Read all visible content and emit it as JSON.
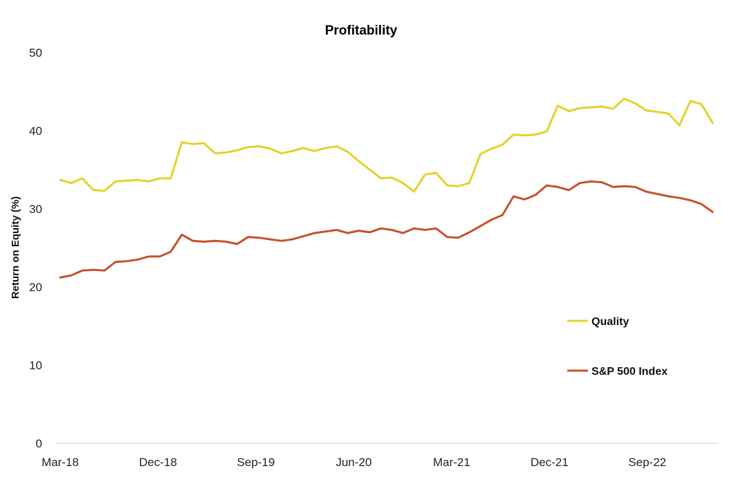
{
  "chart_data": {
    "type": "line",
    "title": "Profitability",
    "xlabel": "",
    "ylabel": "Return on Equity (%)",
    "ylim": [
      0,
      50
    ],
    "yticks": [
      0,
      10,
      20,
      30,
      40,
      50
    ],
    "x_ticks": [
      "Mar-18",
      "Dec-18",
      "Sep-19",
      "Jun-20",
      "Mar-21",
      "Dec-21",
      "Sep-22"
    ],
    "x_start": "Mar-18",
    "x_end": "Mar-23",
    "legend_position": "right",
    "series": [
      {
        "name": "Quality",
        "color": "#e3d22b",
        "values": [
          33.7,
          33.3,
          33.9,
          32.4,
          32.3,
          33.5,
          33.6,
          33.7,
          33.5,
          33.9,
          33.9,
          38.5,
          38.3,
          38.4,
          37.1,
          37.2,
          37.5,
          37.9,
          38.0,
          37.7,
          37.1,
          37.4,
          37.8,
          37.4,
          37.8,
          38.0,
          37.3,
          36.1,
          35.0,
          33.9,
          34.0,
          33.3,
          32.2,
          34.4,
          34.6,
          33.0,
          32.9,
          33.3,
          37.0,
          37.7,
          38.2,
          39.5,
          39.4,
          39.5,
          39.9,
          43.2,
          42.5,
          42.9,
          43.0,
          43.1,
          42.8,
          44.1,
          43.5,
          42.6,
          42.4,
          42.2,
          40.7,
          43.8,
          43.4,
          41.0
        ]
      },
      {
        "name": "S&P 500 Index",
        "color": "#c8502b",
        "values": [
          21.2,
          21.5,
          22.1,
          22.2,
          22.1,
          23.2,
          23.3,
          23.5,
          23.9,
          23.9,
          24.5,
          26.7,
          25.9,
          25.8,
          25.9,
          25.8,
          25.5,
          26.4,
          26.3,
          26.1,
          25.9,
          26.1,
          26.5,
          26.9,
          27.1,
          27.3,
          26.9,
          27.2,
          27.0,
          27.5,
          27.3,
          26.9,
          27.5,
          27.3,
          27.5,
          26.4,
          26.3,
          27.0,
          27.8,
          28.6,
          29.2,
          31.6,
          31.2,
          31.8,
          33.0,
          32.8,
          32.4,
          33.3,
          33.5,
          33.4,
          32.8,
          32.9,
          32.8,
          32.2,
          31.9,
          31.6,
          31.4,
          31.1,
          30.6,
          29.6
        ]
      }
    ]
  }
}
